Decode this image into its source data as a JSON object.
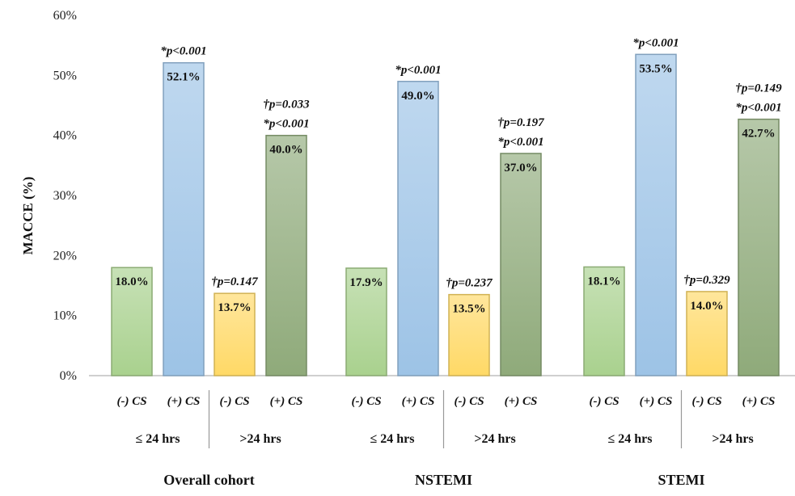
{
  "chart_data": {
    "type": "bar",
    "ylabel": "MACCE (%)",
    "ylim": [
      0,
      60
    ],
    "yticks": [
      "0%",
      "10%",
      "20%",
      "30%",
      "40%",
      "50%",
      "60%"
    ],
    "grid": false,
    "colors": {
      "neg_le24": "#a9d18e",
      "pos_le24": "#9dc3e6",
      "neg_gt24": "#ffd966",
      "pos_gt24": "#8faa7a"
    },
    "groups": [
      {
        "name": "Overall cohort",
        "subgroups": [
          {
            "time_label": "≤ 24 hrs",
            "bars": [
              {
                "label": "(-) CS",
                "value": 18.0,
                "value_label": "18.0%",
                "color_key": "neg_le24",
                "annotations": []
              },
              {
                "label": "(+) CS",
                "value": 52.1,
                "value_label": "52.1%",
                "color_key": "pos_le24",
                "annotations": [
                  "*p<0.001"
                ]
              }
            ]
          },
          {
            "time_label": ">24 hrs",
            "bars": [
              {
                "label": "(-) CS",
                "value": 13.7,
                "value_label": "13.7%",
                "color_key": "neg_gt24",
                "annotations": [
                  "†p=0.147"
                ]
              },
              {
                "label": "(+) CS",
                "value": 40.0,
                "value_label": "40.0%",
                "color_key": "pos_gt24",
                "annotations": [
                  "†p=0.033",
                  "*p<0.001"
                ]
              }
            ]
          }
        ]
      },
      {
        "name": "NSTEMI",
        "subgroups": [
          {
            "time_label": "≤ 24 hrs",
            "bars": [
              {
                "label": "(-) CS",
                "value": 17.9,
                "value_label": "17.9%",
                "color_key": "neg_le24",
                "annotations": []
              },
              {
                "label": "(+) CS",
                "value": 49.0,
                "value_label": "49.0%",
                "color_key": "pos_le24",
                "annotations": [
                  "*p<0.001"
                ]
              }
            ]
          },
          {
            "time_label": ">24 hrs",
            "bars": [
              {
                "label": "(-) CS",
                "value": 13.5,
                "value_label": "13.5%",
                "color_key": "neg_gt24",
                "annotations": [
                  "†p=0.237"
                ]
              },
              {
                "label": "(+) CS",
                "value": 37.0,
                "value_label": "37.0%",
                "color_key": "pos_gt24",
                "annotations": [
                  "†p=0.197",
                  "*p<0.001"
                ]
              }
            ]
          }
        ]
      },
      {
        "name": "STEMI",
        "subgroups": [
          {
            "time_label": "≤ 24 hrs",
            "bars": [
              {
                "label": "(-) CS",
                "value": 18.1,
                "value_label": "18.1%",
                "color_key": "neg_le24",
                "annotations": []
              },
              {
                "label": "(+) CS",
                "value": 53.5,
                "value_label": "53.5%",
                "color_key": "pos_le24",
                "annotations": [
                  "*p<0.001"
                ]
              }
            ]
          },
          {
            "time_label": ">24 hrs",
            "bars": [
              {
                "label": "(-) CS",
                "value": 14.0,
                "value_label": "14.0%",
                "color_key": "neg_gt24",
                "annotations": [
                  "†p=0.329"
                ]
              },
              {
                "label": "(+) CS",
                "value": 42.7,
                "value_label": "42.7%",
                "color_key": "pos_gt24",
                "annotations": [
                  "†p=0.149",
                  "*p<0.001"
                ]
              }
            ]
          }
        ]
      }
    ]
  }
}
